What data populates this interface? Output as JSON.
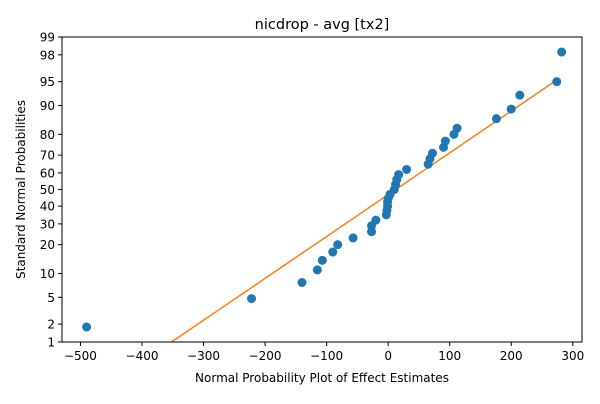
{
  "chart_data": {
    "type": "scatter",
    "title": "nicdrop - avg [tx2]",
    "xlabel": "Normal Probability Plot of Effect Estimates",
    "ylabel": "Standard Normal Probabilities",
    "y_scale": "normal-probability",
    "xlim": [
      -530,
      315
    ],
    "ylim": [
      1,
      99
    ],
    "x_ticks": [
      -500,
      -400,
      -300,
      -200,
      -100,
      0,
      100,
      200,
      300
    ],
    "x_tick_labels": [
      "−500",
      "−400",
      "−300",
      "−200",
      "−100",
      "0",
      "100",
      "200",
      "300"
    ],
    "y_ticks": [
      1,
      2,
      5,
      10,
      20,
      30,
      40,
      50,
      60,
      70,
      80,
      90,
      95,
      98,
      99
    ],
    "y_tick_labels": [
      "1",
      "2",
      "5",
      "10",
      "20",
      "30",
      "40",
      "50",
      "60",
      "70",
      "80",
      "90",
      "95",
      "98",
      "99"
    ],
    "grid": false,
    "legend": "none",
    "colors": {
      "points": "#1f77b4",
      "fit_line": "#ff7f0e"
    },
    "series": [
      {
        "type": "scatter",
        "points": [
          {
            "x": -490,
            "y": 1.8
          },
          {
            "x": -222,
            "y": 4.8
          },
          {
            "x": -140,
            "y": 7.8
          },
          {
            "x": -115,
            "y": 11
          },
          {
            "x": -107,
            "y": 14
          },
          {
            "x": -90,
            "y": 17
          },
          {
            "x": -82,
            "y": 20
          },
          {
            "x": -57,
            "y": 23
          },
          {
            "x": -27,
            "y": 26
          },
          {
            "x": -27,
            "y": 29
          },
          {
            "x": -20,
            "y": 32
          },
          {
            "x": -3,
            "y": 35
          },
          {
            "x": -2,
            "y": 37.5
          },
          {
            "x": -1,
            "y": 40
          },
          {
            "x": -1,
            "y": 42.5
          },
          {
            "x": 0,
            "y": 44.5
          },
          {
            "x": 3,
            "y": 47
          },
          {
            "x": 10,
            "y": 50
          },
          {
            "x": 12,
            "y": 53
          },
          {
            "x": 14,
            "y": 56
          },
          {
            "x": 17,
            "y": 59
          },
          {
            "x": 30,
            "y": 62
          },
          {
            "x": 65,
            "y": 65
          },
          {
            "x": 68,
            "y": 68
          },
          {
            "x": 72,
            "y": 71
          },
          {
            "x": 90,
            "y": 74
          },
          {
            "x": 93,
            "y": 77
          },
          {
            "x": 107,
            "y": 80
          },
          {
            "x": 112,
            "y": 82.5
          },
          {
            "x": 176,
            "y": 86
          },
          {
            "x": 200,
            "y": 89
          },
          {
            "x": 214,
            "y": 92.5
          },
          {
            "x": 274,
            "y": 95
          },
          {
            "x": 282,
            "y": 98.2
          }
        ]
      },
      {
        "type": "line",
        "points": [
          {
            "x": -352,
            "y": 1
          },
          {
            "x": 278,
            "y": 95.5
          }
        ]
      }
    ]
  }
}
